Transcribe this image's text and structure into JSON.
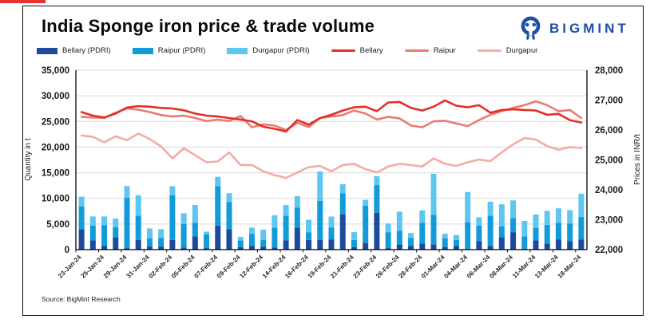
{
  "header": {
    "title": "India Sponge iron price & trade volume",
    "logo_text": "BIGMINT"
  },
  "source": "Source: BigMint Research",
  "colors": {
    "accent_red": "#E5342F",
    "logo_blue": "#1E4FA6",
    "grid": "#D9D9D9",
    "axis_line": "#000000",
    "text": "#1a1a1a"
  },
  "chart_data": {
    "type": "combo (stacked bar + line)",
    "title": "India Sponge iron price & trade volume",
    "x_labels": [
      "23-Jan-24",
      "25-Jan-24",
      "29-Jan-24",
      "31-Jan-24",
      "02-Feb-24",
      "05-Feb-24",
      "07-Feb-24",
      "09-Feb-24",
      "12-Feb-24",
      "14-Feb-24",
      "16-Feb-24",
      "19-Feb-24",
      "21-Feb-24",
      "23-Feb-24",
      "26-Feb-24",
      "28-Feb-24",
      "01-Mar-24",
      "04-Mar-24",
      "06-Mar-24",
      "08-Mar-24",
      "11-Mar-24",
      "13-Mar-24",
      "18-Mar-24"
    ],
    "label_every": 2,
    "n_points": 45,
    "left_axis": {
      "title": "Quantity in t",
      "min": 0,
      "max": 35000,
      "step": 5000
    },
    "right_axis": {
      "title": "Prices in INR/t",
      "min": 22000,
      "max": 28000,
      "step": 1000
    },
    "bar_series": [
      {
        "name": "Bellary (PDRI)",
        "color": "#1C4B9C",
        "axis": "left",
        "values": [
          4000,
          1800,
          700,
          2400,
          300,
          1900,
          600,
          600,
          1900,
          400,
          2600,
          300,
          4700,
          4000,
          500,
          700,
          600,
          400,
          1800,
          4300,
          1900,
          1900,
          2000,
          6900,
          500,
          1300,
          7200,
          300,
          1000,
          700,
          1200,
          1000,
          500,
          700,
          200,
          1650,
          700,
          2400,
          3400,
          200,
          1800,
          1200,
          2000,
          1650,
          2000
        ]
      },
      {
        "name": "Raipur (PDRI)",
        "color": "#119BD9",
        "axis": "left",
        "values": [
          4450,
          2900,
          4100,
          1950,
          9800,
          4700,
          1600,
          1700,
          8700,
          4600,
          2650,
          2700,
          7700,
          5300,
          1300,
          2400,
          1300,
          3900,
          4800,
          3900,
          1500,
          7600,
          2300,
          4100,
          1400,
          7300,
          5380,
          3100,
          2650,
          1600,
          4050,
          5800,
          1700,
          1200,
          5150,
          3050,
          5900,
          2150,
          2750,
          2400,
          2400,
          3650,
          3250,
          3450,
          4400
        ]
      },
      {
        "name": "Durgapur (PDRI)",
        "color": "#5EC6F0",
        "axis": "left",
        "values": [
          1880,
          1770,
          1670,
          1700,
          2300,
          4000,
          1930,
          1700,
          1770,
          2100,
          3450,
          500,
          1800,
          1700,
          700,
          1200,
          2000,
          2400,
          2100,
          2250,
          2400,
          5750,
          2150,
          1750,
          1500,
          1100,
          1760,
          1700,
          3750,
          950,
          2400,
          8000,
          900,
          950,
          5890,
          1600,
          2750,
          4300,
          3450,
          3000,
          2650,
          2700,
          2800,
          2600,
          4500
        ]
      }
    ],
    "line_series": [
      {
        "name": "Durgapur",
        "color": "#F3ACA6",
        "axis": "right",
        "values": [
          25820,
          25770,
          25590,
          25790,
          25660,
          25880,
          25700,
          25450,
          25050,
          25390,
          25160,
          24920,
          24950,
          25250,
          24830,
          24830,
          24620,
          24490,
          24400,
          24580,
          24760,
          24800,
          24620,
          24830,
          24870,
          24690,
          24580,
          24780,
          24870,
          24830,
          24780,
          25050,
          24870,
          24800,
          24920,
          25010,
          24960,
          25250,
          25520,
          25730,
          25680,
          25460,
          25340,
          25430,
          25400
        ]
      },
      {
        "name": "Raipur",
        "color": "#EC7A70",
        "axis": "right",
        "values": [
          26440,
          26420,
          26400,
          26580,
          26720,
          26680,
          26600,
          26500,
          26450,
          26480,
          26400,
          26300,
          26350,
          26300,
          26470,
          26090,
          26190,
          26150,
          26000,
          26240,
          26100,
          26400,
          26450,
          26500,
          26650,
          26550,
          26350,
          26440,
          26390,
          26150,
          26090,
          26290,
          26310,
          26220,
          26130,
          26330,
          26510,
          26630,
          26740,
          26830,
          26960,
          26830,
          26630,
          26670,
          26400
        ]
      },
      {
        "name": "Bellary",
        "color": "#E23028",
        "axis": "right",
        "values": [
          26600,
          26480,
          26420,
          26550,
          26750,
          26800,
          26780,
          26740,
          26720,
          26660,
          26550,
          26480,
          26450,
          26400,
          26350,
          26290,
          26110,
          26040,
          25950,
          26330,
          26180,
          26400,
          26510,
          26650,
          26760,
          26780,
          26630,
          26920,
          26940,
          26740,
          26650,
          26780,
          26990,
          26810,
          26760,
          26830,
          26580,
          26670,
          26690,
          26670,
          26650,
          26510,
          26540,
          26330,
          26250
        ]
      }
    ],
    "legend_order": [
      "Bellary (PDRI)",
      "Raipur (PDRI)",
      "Durgapur (PDRI)",
      "Bellary",
      "Raipur",
      "Durgapur"
    ]
  }
}
